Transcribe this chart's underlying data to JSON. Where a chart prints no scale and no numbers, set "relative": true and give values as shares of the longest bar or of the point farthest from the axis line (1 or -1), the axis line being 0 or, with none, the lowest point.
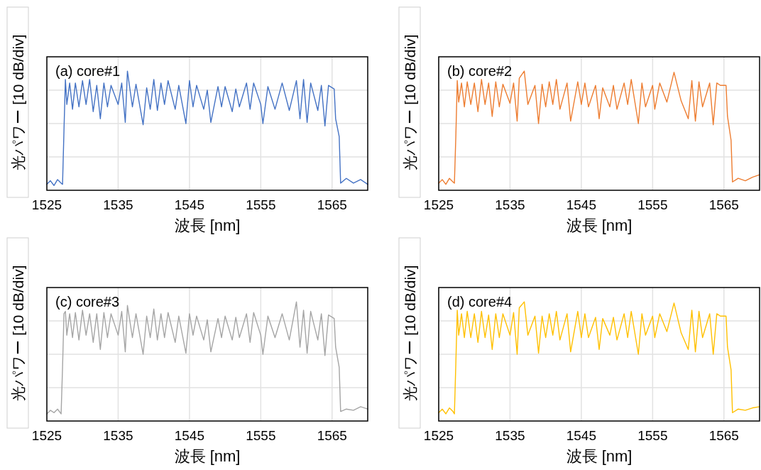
{
  "chart_data": [
    {
      "type": "line",
      "title": "(a) core#1",
      "xlabel": "波長 [nm]",
      "ylabel": "光パワー [10 dB/div]",
      "relative": true,
      "grid": true,
      "xlim": [
        1525,
        1570
      ],
      "xticks": [
        1525,
        1535,
        1545,
        1555,
        1565
      ],
      "x": [
        1525,
        1525.5,
        1526,
        1526.5,
        1527,
        1527.2,
        1527.4,
        1527.6,
        1527.8,
        1528.2,
        1528.6,
        1529,
        1529.5,
        1530,
        1530.5,
        1531,
        1531.5,
        1532,
        1532.5,
        1533,
        1533.5,
        1534,
        1535,
        1535.5,
        1536,
        1536.3,
        1537,
        1537.5,
        1538.5,
        1539,
        1539.5,
        1540,
        1540.5,
        1541,
        1541.5,
        1542,
        1543,
        1543.5,
        1544.5,
        1545,
        1545.5,
        1546,
        1547,
        1547.5,
        1548,
        1549,
        1549.5,
        1550,
        1551,
        1551.5,
        1552,
        1553,
        1553.5,
        1554,
        1555,
        1555.3,
        1556,
        1557,
        1558,
        1559,
        1560,
        1560.5,
        1561,
        1561.5,
        1562,
        1563,
        1563.5,
        1564,
        1564.5,
        1565.3,
        1565.5,
        1566,
        1566.2,
        1567,
        1568,
        1569,
        1570
      ],
      "series": [
        {
          "color": "#4472c4",
          "values": [
            0.05,
            0.08,
            0.04,
            0.09,
            0.06,
            0.05,
            0.5,
            0.93,
            0.72,
            0.9,
            0.68,
            0.9,
            0.7,
            0.92,
            0.72,
            0.93,
            0.66,
            0.88,
            0.6,
            0.9,
            0.7,
            0.88,
            0.72,
            0.9,
            0.57,
            1,
            0.7,
            0.89,
            0.55,
            0.86,
            0.68,
            0.93,
            0.67,
            0.9,
            0.72,
            0.92,
            0.68,
            0.88,
            0.56,
            0.92,
            0.7,
            0.88,
            0.68,
            0.84,
            0.57,
            0.87,
            0.7,
            0.87,
            0.66,
            0.85,
            0.7,
            0.9,
            0.68,
            0.9,
            0.72,
            0.56,
            0.87,
            0.68,
            0.9,
            0.67,
            0.92,
            0.6,
            0.93,
            0.57,
            0.9,
            0.67,
            0.88,
            0.54,
            0.88,
            0.85,
            0.6,
            0.45,
            0.06,
            0.1,
            0.06,
            0.09,
            0.05
          ]
        }
      ]
    },
    {
      "type": "line",
      "title": "(b) core#2",
      "xlabel": "波長 [nm]",
      "ylabel": "光パワー [10 dB/div]",
      "relative": true,
      "grid": true,
      "xlim": [
        1525,
        1570
      ],
      "xticks": [
        1525,
        1535,
        1545,
        1555,
        1565
      ],
      "x": [
        1525,
        1525.5,
        1526,
        1526.5,
        1527,
        1527.2,
        1527.4,
        1527.6,
        1527.8,
        1528.2,
        1528.6,
        1529,
        1529.5,
        1530,
        1530.5,
        1531,
        1531.5,
        1532,
        1532.5,
        1533,
        1533.5,
        1534,
        1535,
        1535.5,
        1536,
        1536.3,
        1537,
        1537.5,
        1538.5,
        1539,
        1539.5,
        1540,
        1540.5,
        1541,
        1541.5,
        1542,
        1543,
        1543.5,
        1544.5,
        1545,
        1545.5,
        1546,
        1547,
        1547.5,
        1548,
        1549,
        1549.5,
        1550,
        1551,
        1551.5,
        1552,
        1553,
        1553.5,
        1554,
        1555,
        1555.3,
        1556,
        1557,
        1558,
        1559,
        1560,
        1560.5,
        1561,
        1561.5,
        1562,
        1563,
        1563.5,
        1564,
        1564.5,
        1565.3,
        1565.5,
        1566,
        1566.2,
        1567,
        1568,
        1569,
        1570
      ],
      "series": [
        {
          "color": "#ed7d31",
          "values": [
            0.06,
            0.09,
            0.05,
            0.1,
            0.07,
            0.06,
            0.45,
            0.92,
            0.74,
            0.9,
            0.7,
            0.91,
            0.72,
            0.9,
            0.66,
            0.93,
            0.72,
            0.9,
            0.62,
            0.91,
            0.7,
            0.89,
            0.73,
            0.9,
            0.58,
            0.94,
            1,
            0.72,
            0.88,
            0.56,
            0.89,
            0.7,
            0.91,
            0.72,
            0.93,
            0.68,
            0.9,
            0.58,
            0.91,
            0.72,
            0.9,
            0.7,
            0.88,
            0.6,
            0.86,
            0.7,
            0.88,
            0.68,
            0.9,
            0.72,
            0.93,
            0.56,
            0.9,
            0.7,
            0.88,
            0.68,
            0.9,
            0.74,
            0.99,
            0.75,
            0.6,
            0.92,
            0.58,
            0.91,
            0.7,
            0.9,
            0.55,
            0.9,
            0.88,
            0.88,
            0.62,
            0.42,
            0.07,
            0.1,
            0.08,
            0.11,
            0.13
          ]
        }
      ]
    },
    {
      "type": "line",
      "title": "(c) core#3",
      "xlabel": "波長 [nm]",
      "ylabel": "光パワー [10 dB/div]",
      "relative": true,
      "grid": true,
      "xlim": [
        1525,
        1570
      ],
      "xticks": [
        1525,
        1535,
        1545,
        1555,
        1565
      ],
      "x": [
        1525,
        1525.5,
        1526,
        1526.5,
        1527,
        1527.2,
        1527.4,
        1527.6,
        1527.8,
        1528.2,
        1528.6,
        1529,
        1529.5,
        1530,
        1530.5,
        1531,
        1531.5,
        1532,
        1532.5,
        1533,
        1533.5,
        1534,
        1535,
        1535.5,
        1536,
        1536.3,
        1537,
        1537.5,
        1538.5,
        1539,
        1539.5,
        1540,
        1540.5,
        1541,
        1541.5,
        1542,
        1543,
        1543.5,
        1544.5,
        1545,
        1545.5,
        1546,
        1547,
        1547.5,
        1548,
        1549,
        1549.5,
        1550,
        1551,
        1551.5,
        1552,
        1553,
        1553.5,
        1554,
        1555,
        1555.3,
        1556,
        1557,
        1558,
        1559,
        1560,
        1560.5,
        1561,
        1561.5,
        1562,
        1563,
        1563.5,
        1564,
        1564.5,
        1565.3,
        1565.5,
        1566,
        1566.2,
        1567,
        1568,
        1569,
        1570
      ],
      "series": [
        {
          "color": "#a5a5a5",
          "values": [
            0.06,
            0.09,
            0.07,
            0.1,
            0.06,
            0.45,
            0.9,
            0.92,
            0.72,
            0.9,
            0.7,
            0.91,
            0.68,
            0.93,
            0.72,
            0.9,
            0.66,
            0.9,
            0.6,
            0.91,
            0.7,
            0.9,
            0.72,
            0.92,
            0.58,
            0.97,
            0.7,
            0.9,
            0.56,
            0.88,
            0.7,
            0.94,
            0.68,
            0.9,
            0.7,
            0.91,
            0.66,
            0.88,
            0.57,
            0.9,
            0.72,
            0.88,
            0.68,
            0.85,
            0.58,
            0.86,
            0.7,
            0.88,
            0.68,
            0.87,
            0.7,
            0.9,
            0.66,
            0.91,
            0.72,
            0.56,
            0.88,
            0.7,
            0.9,
            0.68,
            1,
            0.62,
            0.93,
            0.57,
            0.92,
            0.68,
            0.9,
            0.55,
            0.89,
            0.86,
            0.62,
            0.45,
            0.08,
            0.1,
            0.09,
            0.12,
            0.1
          ]
        }
      ]
    },
    {
      "type": "line",
      "title": "(d) core#4",
      "xlabel": "波長 [nm]",
      "ylabel": "光パワー [10 dB/div]",
      "relative": true,
      "grid": true,
      "xlim": [
        1525,
        1570
      ],
      "xticks": [
        1525,
        1535,
        1545,
        1555,
        1565
      ],
      "x": [
        1525,
        1525.5,
        1526,
        1526.5,
        1527,
        1527.2,
        1527.4,
        1527.6,
        1527.8,
        1528.2,
        1528.6,
        1529,
        1529.5,
        1530,
        1530.5,
        1531,
        1531.5,
        1532,
        1532.5,
        1533,
        1533.5,
        1534,
        1535,
        1535.5,
        1536,
        1536.3,
        1537,
        1537.5,
        1538.5,
        1539,
        1539.5,
        1540,
        1540.5,
        1541,
        1541.5,
        1542,
        1543,
        1543.5,
        1544.5,
        1545,
        1545.5,
        1546,
        1547,
        1547.5,
        1548,
        1549,
        1549.5,
        1550,
        1551,
        1551.5,
        1552,
        1553,
        1553.5,
        1554,
        1555,
        1555.3,
        1556,
        1557,
        1558,
        1559,
        1560,
        1560.5,
        1561,
        1561.5,
        1562,
        1563,
        1563.5,
        1564,
        1564.5,
        1565.3,
        1565.5,
        1566,
        1566.2,
        1567,
        1568,
        1569,
        1570
      ],
      "series": [
        {
          "color": "#ffc000",
          "values": [
            0.07,
            0.1,
            0.06,
            0.11,
            0.08,
            0.06,
            0.48,
            0.93,
            0.72,
            0.9,
            0.7,
            0.92,
            0.7,
            0.9,
            0.66,
            0.92,
            0.7,
            0.89,
            0.6,
            0.9,
            0.7,
            0.9,
            0.72,
            0.91,
            0.56,
            0.95,
            1,
            0.72,
            0.88,
            0.57,
            0.88,
            0.7,
            0.9,
            0.72,
            0.92,
            0.68,
            0.9,
            0.58,
            0.92,
            0.7,
            0.9,
            0.7,
            0.87,
            0.6,
            0.86,
            0.72,
            0.87,
            0.68,
            0.9,
            0.7,
            0.92,
            0.56,
            0.9,
            0.72,
            0.88,
            0.7,
            0.9,
            0.75,
            0.99,
            0.74,
            0.6,
            0.93,
            0.58,
            0.92,
            0.7,
            0.9,
            0.56,
            0.9,
            0.88,
            0.88,
            0.62,
            0.43,
            0.07,
            0.1,
            0.09,
            0.11,
            0.12
          ]
        }
      ]
    }
  ]
}
